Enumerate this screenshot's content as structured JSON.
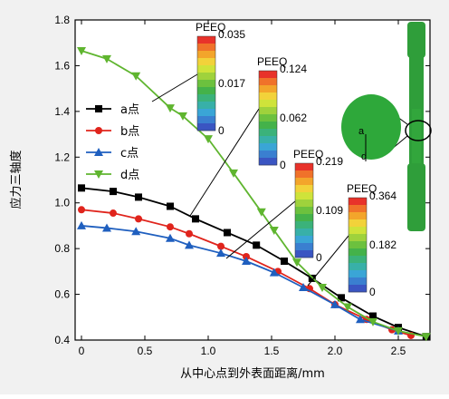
{
  "chart_data": {
    "type": "line",
    "xlabel": "从中心点到外表面距离/mm",
    "ylabel": "应力三轴度",
    "xlim": [
      -0.05,
      2.75
    ],
    "ylim": [
      0.4,
      1.8
    ],
    "xticks": [
      "0",
      "0.5",
      "1.0",
      "1.5",
      "2.0",
      "2.5"
    ],
    "xtick_values": [
      0,
      0.5,
      1.0,
      1.5,
      2.0,
      2.5
    ],
    "yticks": [
      "0.4",
      "0.6",
      "0.8",
      "1.0",
      "1.2",
      "1.4",
      "1.6",
      "1.8"
    ],
    "ytick_values": [
      0.4,
      0.6,
      0.8,
      1.0,
      1.2,
      1.4,
      1.6,
      1.8
    ],
    "legend_position": "left-center",
    "series": [
      {
        "name": "a点",
        "marker": "square",
        "color": "#000000",
        "x": [
          0,
          0.25,
          0.45,
          0.7,
          0.9,
          1.15,
          1.38,
          1.6,
          1.82,
          2.05,
          2.3,
          2.5,
          2.72
        ],
        "y": [
          1.065,
          1.05,
          1.025,
          0.985,
          0.93,
          0.87,
          0.815,
          0.745,
          0.67,
          0.585,
          0.505,
          0.455,
          0.415
        ]
      },
      {
        "name": "b点",
        "marker": "circle",
        "color": "#e0241c",
        "x": [
          0,
          0.25,
          0.45,
          0.7,
          0.85,
          1.1,
          1.3,
          1.55,
          1.8,
          2.0,
          2.25,
          2.45,
          2.6
        ],
        "y": [
          0.97,
          0.955,
          0.93,
          0.895,
          0.865,
          0.81,
          0.765,
          0.7,
          0.625,
          0.555,
          0.49,
          0.445,
          0.42
        ]
      },
      {
        "name": "c点",
        "marker": "triangle-up",
        "color": "#1f5fbf",
        "x": [
          0,
          0.2,
          0.43,
          0.7,
          0.85,
          1.1,
          1.3,
          1.52,
          1.75,
          2.0,
          2.2,
          2.5
        ],
        "y": [
          0.9,
          0.89,
          0.875,
          0.845,
          0.815,
          0.78,
          0.745,
          0.695,
          0.63,
          0.555,
          0.49,
          0.44
        ]
      },
      {
        "name": "d点",
        "marker": "triangle-down",
        "color": "#5fb52f",
        "x": [
          0,
          0.2,
          0.43,
          0.7,
          0.8,
          1.0,
          1.2,
          1.42,
          1.52,
          1.7,
          1.9,
          2.1,
          2.3,
          2.5,
          2.72
        ],
        "y": [
          1.665,
          1.63,
          1.555,
          1.415,
          1.38,
          1.28,
          1.13,
          0.96,
          0.88,
          0.74,
          0.63,
          0.545,
          0.48,
          0.44,
          0.415
        ]
      }
    ],
    "colorbars": [
      {
        "title": "PEEQ",
        "max": "0.035",
        "mid": "0.017",
        "min": "0"
      },
      {
        "title": "PEEQ",
        "max": "0.124",
        "mid": "0.062",
        "min": "0"
      },
      {
        "title": "PEEQ",
        "max": "0.219",
        "mid": "0.109",
        "min": "0"
      },
      {
        "title": "PEEQ",
        "max": "0.364",
        "mid": "0.182",
        "min": "0"
      }
    ],
    "inset_labels": {
      "point_a": "a",
      "point_d": "d"
    }
  }
}
